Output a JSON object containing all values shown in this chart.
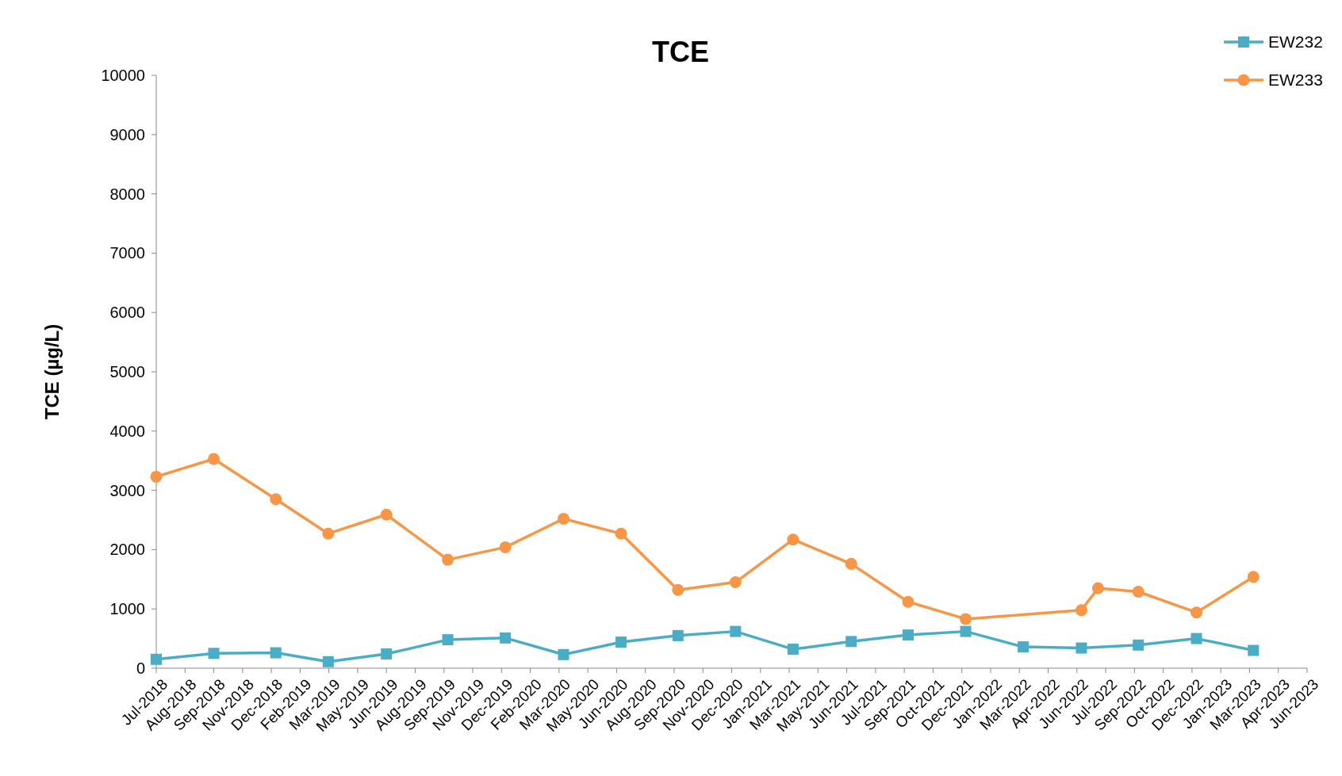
{
  "chart_data": {
    "type": "line",
    "title": "TCE",
    "ylabel": "TCE (µg/L)",
    "ylim": [
      0,
      10000
    ],
    "yticks": [
      0,
      1000,
      2000,
      3000,
      4000,
      5000,
      6000,
      7000,
      8000,
      9000,
      10000
    ],
    "xlim": [
      "2018-07-01",
      "2023-06-05"
    ],
    "xticks": [
      {
        "value": "2018-07-01",
        "label": "Jul-2018"
      },
      {
        "value": "2018-08-15",
        "label": "Aug-2018"
      },
      {
        "value": "2018-09-29",
        "label": "Sep-2018"
      },
      {
        "value": "2018-11-13",
        "label": "Nov-2018"
      },
      {
        "value": "2018-12-28",
        "label": "Dec-2018"
      },
      {
        "value": "2019-02-11",
        "label": "Feb-2019"
      },
      {
        "value": "2019-03-28",
        "label": "Mar-2019"
      },
      {
        "value": "2019-05-12",
        "label": "May-2019"
      },
      {
        "value": "2019-06-26",
        "label": "Jun-2019"
      },
      {
        "value": "2019-08-10",
        "label": "Aug-2019"
      },
      {
        "value": "2019-09-24",
        "label": "Sep-2019"
      },
      {
        "value": "2019-11-08",
        "label": "Nov-2019"
      },
      {
        "value": "2019-12-23",
        "label": "Dec-2019"
      },
      {
        "value": "2020-02-06",
        "label": "Feb-2020"
      },
      {
        "value": "2020-03-22",
        "label": "Mar-2020"
      },
      {
        "value": "2020-05-06",
        "label": "May-2020"
      },
      {
        "value": "2020-06-20",
        "label": "Jun-2020"
      },
      {
        "value": "2020-08-04",
        "label": "Aug-2020"
      },
      {
        "value": "2020-09-18",
        "label": "Sep-2020"
      },
      {
        "value": "2020-11-02",
        "label": "Nov-2020"
      },
      {
        "value": "2020-12-17",
        "label": "Dec-2020"
      },
      {
        "value": "2021-01-31",
        "label": "Jan-2021"
      },
      {
        "value": "2021-03-17",
        "label": "Mar-2021"
      },
      {
        "value": "2021-05-01",
        "label": "May-2021"
      },
      {
        "value": "2021-06-15",
        "label": "Jun-2021"
      },
      {
        "value": "2021-07-30",
        "label": "Jul-2021"
      },
      {
        "value": "2021-09-13",
        "label": "Sep-2021"
      },
      {
        "value": "2021-10-28",
        "label": "Oct-2021"
      },
      {
        "value": "2021-12-12",
        "label": "Dec-2021"
      },
      {
        "value": "2022-01-26",
        "label": "Jan-2022"
      },
      {
        "value": "2022-03-12",
        "label": "Mar-2022"
      },
      {
        "value": "2022-04-26",
        "label": "Apr-2022"
      },
      {
        "value": "2022-06-10",
        "label": "Jun-2022"
      },
      {
        "value": "2022-07-25",
        "label": "Jul-2022"
      },
      {
        "value": "2022-09-08",
        "label": "Sep-2022"
      },
      {
        "value": "2022-10-23",
        "label": "Oct-2022"
      },
      {
        "value": "2022-12-07",
        "label": "Dec-2022"
      },
      {
        "value": "2023-01-21",
        "label": "Jan-2023"
      },
      {
        "value": "2023-03-07",
        "label": "Mar-2023"
      },
      {
        "value": "2023-04-21",
        "label": "Apr-2023"
      },
      {
        "value": "2023-06-05",
        "label": "Jun-2023"
      }
    ],
    "grid": false,
    "legend": "top right",
    "line_style": "solid",
    "series": [
      {
        "name": "EW232",
        "color": "#4bacc6",
        "marker": "square",
        "x": [
          "2018-07-01",
          "2018-09-29",
          "2019-01-04",
          "2019-03-27",
          "2019-06-26",
          "2019-09-30",
          "2019-12-29",
          "2020-03-29",
          "2020-06-27",
          "2020-09-24",
          "2020-12-23",
          "2021-03-23",
          "2021-06-22",
          "2021-09-19",
          "2021-12-18",
          "2022-03-18",
          "2022-06-17",
          "2022-09-14",
          "2022-12-14",
          "2023-03-13"
        ],
        "values": [
          150,
          250,
          260,
          110,
          240,
          480,
          510,
          230,
          440,
          550,
          620,
          320,
          450,
          560,
          620,
          360,
          340,
          390,
          500,
          300
        ]
      },
      {
        "name": "EW233",
        "color": "#f79646",
        "marker": "circle",
        "x": [
          "2018-07-01",
          "2018-09-29",
          "2019-01-04",
          "2019-03-27",
          "2019-06-26",
          "2019-09-30",
          "2019-12-29",
          "2020-03-29",
          "2020-06-27",
          "2020-09-24",
          "2020-12-23",
          "2021-03-23",
          "2021-06-22",
          "2021-09-19",
          "2021-12-18",
          "2022-06-17",
          "2022-07-13",
          "2022-09-14",
          "2022-12-14",
          "2023-03-13"
        ],
        "values": [
          3230,
          3530,
          2850,
          2270,
          2590,
          1830,
          2040,
          2520,
          2270,
          1320,
          1450,
          2170,
          1760,
          1120,
          830,
          980,
          1350,
          1290,
          940,
          1540
        ]
      }
    ]
  }
}
